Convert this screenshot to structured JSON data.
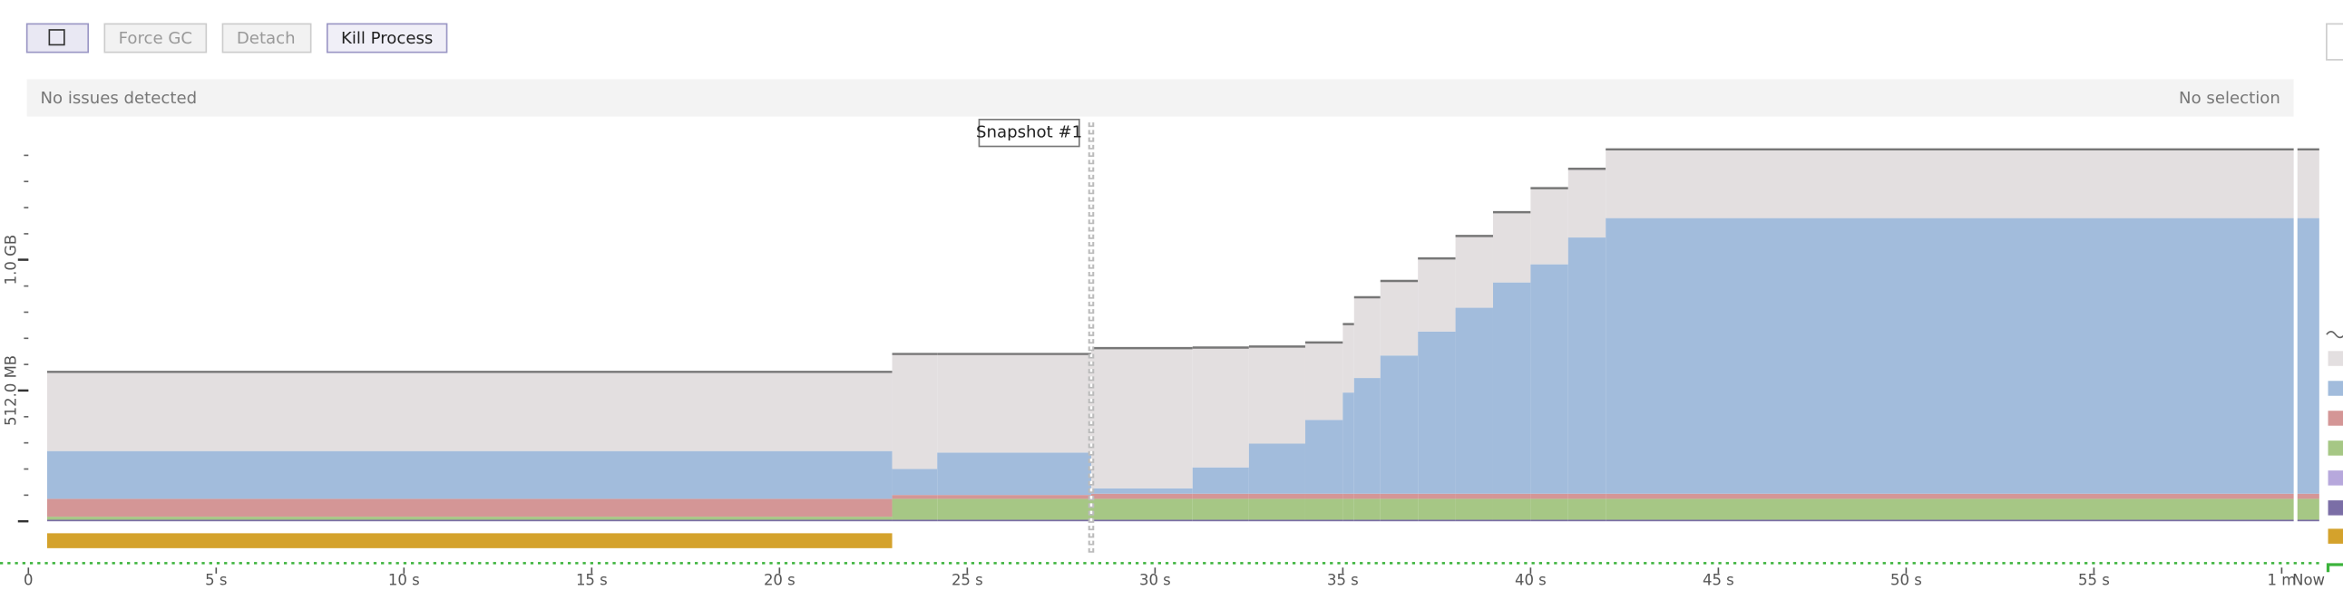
{
  "toolbar": {
    "buttons": [
      "Force GC",
      "Detach",
      "Kill Process"
    ]
  },
  "status": {
    "left": "No issues detected",
    "right": "No selection"
  },
  "snapshot": {
    "label": "Snapshot #1",
    "time": 28.3
  },
  "chart_data": {
    "type": "area",
    "x": [
      0.5,
      23,
      24.2,
      28.3,
      31,
      32.5,
      34,
      35,
      35.3,
      36,
      37,
      38,
      39,
      40,
      41,
      42
    ],
    "end": 61,
    "series": [
      {
        "color": "#7b6ea6",
        "values": [
          6,
          6,
          6,
          6,
          6,
          6,
          6,
          6,
          6,
          6,
          6,
          6,
          6,
          6,
          6,
          6
        ]
      },
      {
        "color": "#a6c785",
        "values": [
          12,
          82,
          82,
          82,
          82,
          82,
          82,
          82,
          82,
          82,
          82,
          82,
          82,
          82,
          82,
          82
        ]
      },
      {
        "color": "#d49696",
        "values": [
          70,
          15,
          15,
          20,
          20,
          20,
          20,
          20,
          20,
          20,
          20,
          20,
          20,
          20,
          20,
          20
        ]
      },
      {
        "color": "#a2bcdc",
        "values": [
          187,
          102,
          166,
          21,
          103,
          196,
          289,
          396,
          453,
          541,
          635,
          728,
          827,
          898,
          1003,
          1079
        ]
      },
      {
        "color": "#e3dfe0",
        "values": [
          310,
          450,
          386,
          549,
          469,
          380,
          303,
          268,
          316,
          292,
          286,
          281,
          275,
          298,
          269,
          269
        ]
      }
    ],
    "xlim": [
      0,
      62
    ],
    "ylim": [
      0,
      1456
    ],
    "yticks": [
      {
        "value": 512,
        "label": "512.0 MB"
      },
      {
        "value": 1024,
        "label": "1.0 GB"
      }
    ],
    "xticks": [
      0,
      {
        "value": 5,
        "label": "5 s"
      },
      {
        "value": 10,
        "label": "10 s"
      },
      {
        "value": 15,
        "label": "15 s"
      },
      {
        "value": 20,
        "label": "20 s"
      },
      {
        "value": 25,
        "label": "25 s"
      },
      {
        "value": 30,
        "label": "30 s"
      },
      {
        "value": 35,
        "label": "35 s"
      },
      {
        "value": 40,
        "label": "40 s"
      },
      {
        "value": 45,
        "label": "45 s"
      },
      {
        "value": 50,
        "label": "50 s"
      },
      {
        "value": 55,
        "label": "55 s"
      },
      {
        "value": 60,
        "label": "1 m"
      }
    ],
    "now_label": "Now"
  }
}
